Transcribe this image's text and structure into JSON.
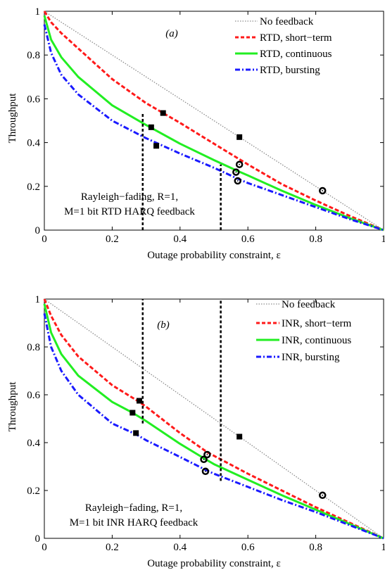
{
  "colors": {
    "no_feedback": "#8c8c8c",
    "short_term": "#ff1a1a",
    "continuous": "#22ee22",
    "bursting": "#1a1aff",
    "axis": "#000000"
  },
  "chart_data": [
    {
      "type": "line",
      "panel_label": "(a)",
      "xlabel": "Outage probability constraint, ε",
      "ylabel": "Throughput",
      "xlim": [
        0,
        1
      ],
      "ylim": [
        0,
        1
      ],
      "x_ticks": [
        "0",
        "0.2",
        "0.4",
        "0.6",
        "0.8",
        "1"
      ],
      "y_ticks": [
        "0",
        "0.2",
        "0.4",
        "0.6",
        "0.8",
        "1"
      ],
      "grid": false,
      "legend_position": "top-right",
      "annotation": [
        "Rayleigh−fading, R=1,",
        "M=1 bit RTD HARQ feedback"
      ],
      "series": [
        {
          "name": "No feedback",
          "style": "dotted",
          "color": "#8c8c8c",
          "x": [
            0,
            0.1,
            0.2,
            0.3,
            0.4,
            0.5,
            0.6,
            0.7,
            0.8,
            0.9,
            1
          ],
          "y": [
            1,
            0.9,
            0.8,
            0.7,
            0.6,
            0.5,
            0.4,
            0.3,
            0.2,
            0.1,
            0
          ]
        },
        {
          "name": "RTD, short−term",
          "style": "dashed",
          "color": "#ff1a1a",
          "x": [
            0,
            0.02,
            0.05,
            0.1,
            0.2,
            0.3,
            0.35,
            0.4,
            0.5,
            0.6,
            0.7,
            0.8,
            0.9,
            1
          ],
          "y": [
            1,
            0.95,
            0.9,
            0.83,
            0.69,
            0.58,
            0.535,
            0.49,
            0.395,
            0.3,
            0.21,
            0.135,
            0.065,
            0
          ]
        },
        {
          "name": "RTD, continuous",
          "style": "solid",
          "color": "#22ee22",
          "x": [
            0,
            0.02,
            0.05,
            0.1,
            0.2,
            0.3,
            0.4,
            0.5,
            0.57,
            0.6,
            0.7,
            0.8,
            0.9,
            1
          ],
          "y": [
            0.98,
            0.87,
            0.79,
            0.7,
            0.57,
            0.48,
            0.395,
            0.32,
            0.27,
            0.25,
            0.18,
            0.115,
            0.055,
            0
          ]
        },
        {
          "name": "RTD, bursting",
          "style": "dashdot",
          "color": "#1a1aff",
          "x": [
            0,
            0.02,
            0.05,
            0.1,
            0.2,
            0.3,
            0.4,
            0.5,
            0.57,
            0.6,
            0.7,
            0.8,
            0.9,
            1
          ],
          "y": [
            0.94,
            0.81,
            0.71,
            0.62,
            0.5,
            0.42,
            0.35,
            0.285,
            0.235,
            0.215,
            0.16,
            0.105,
            0.05,
            0
          ]
        }
      ],
      "square_markers": {
        "x": [
          0.35,
          0.315,
          0.33,
          0.575
        ],
        "y": [
          0.535,
          0.47,
          0.385,
          0.425
        ]
      },
      "circle_markers": {
        "x": [
          0.575,
          0.565,
          0.57,
          0.82
        ],
        "y": [
          0.3,
          0.265,
          0.225,
          0.18
        ]
      },
      "vertical_guides": {
        "x": [
          0.29,
          0.52
        ],
        "y_bottom": [
          0,
          0
        ],
        "y_top": [
          0.54,
          0.3
        ]
      }
    },
    {
      "type": "line",
      "panel_label": "(b)",
      "xlabel": "Outage probability constraint, ε",
      "ylabel": "Throughput",
      "xlim": [
        0,
        1
      ],
      "ylim": [
        0,
        1
      ],
      "x_ticks": [
        "0",
        "0.2",
        "0.4",
        "0.6",
        "0.8",
        "1"
      ],
      "y_ticks": [
        "0",
        "0.2",
        "0.4",
        "0.6",
        "0.8",
        "1"
      ],
      "grid": false,
      "legend_position": "top-right",
      "annotation": [
        "Rayleigh−fading, R=1,",
        "M=1 bit INR HARQ feedback"
      ],
      "series": [
        {
          "name": "No feedback",
          "style": "dotted",
          "color": "#8c8c8c",
          "x": [
            0,
            0.1,
            0.2,
            0.3,
            0.4,
            0.5,
            0.6,
            0.7,
            0.8,
            0.9,
            1
          ],
          "y": [
            1,
            0.9,
            0.8,
            0.7,
            0.6,
            0.5,
            0.4,
            0.3,
            0.2,
            0.1,
            0
          ]
        },
        {
          "name": "INR, short−term",
          "style": "dashed",
          "color": "#ff1a1a",
          "x": [
            0,
            0.02,
            0.05,
            0.1,
            0.2,
            0.28,
            0.3,
            0.4,
            0.48,
            0.5,
            0.6,
            0.7,
            0.8,
            0.9,
            1
          ],
          "y": [
            1,
            0.93,
            0.85,
            0.76,
            0.64,
            0.57,
            0.55,
            0.44,
            0.36,
            0.345,
            0.27,
            0.2,
            0.13,
            0.065,
            0
          ]
        },
        {
          "name": "INR, continuous",
          "style": "solid",
          "color": "#22ee22",
          "x": [
            0,
            0.02,
            0.05,
            0.1,
            0.2,
            0.26,
            0.3,
            0.4,
            0.47,
            0.5,
            0.6,
            0.7,
            0.8,
            0.9,
            1
          ],
          "y": [
            0.98,
            0.86,
            0.77,
            0.68,
            0.57,
            0.525,
            0.49,
            0.395,
            0.335,
            0.31,
            0.245,
            0.18,
            0.12,
            0.06,
            0
          ]
        },
        {
          "name": "INR, bursting",
          "style": "dashdot",
          "color": "#1a1aff",
          "x": [
            0,
            0.02,
            0.05,
            0.1,
            0.2,
            0.27,
            0.3,
            0.4,
            0.47,
            0.5,
            0.6,
            0.7,
            0.8,
            0.9,
            1
          ],
          "y": [
            0.94,
            0.8,
            0.7,
            0.6,
            0.48,
            0.435,
            0.41,
            0.34,
            0.29,
            0.27,
            0.215,
            0.16,
            0.11,
            0.055,
            0
          ]
        }
      ],
      "square_markers": {
        "x": [
          0.28,
          0.26,
          0.27,
          0.575
        ],
        "y": [
          0.575,
          0.525,
          0.44,
          0.425
        ]
      },
      "circle_markers": {
        "x": [
          0.48,
          0.47,
          0.475,
          0.82
        ],
        "y": [
          0.35,
          0.33,
          0.28,
          0.18
        ]
      },
      "vertical_guides": {
        "x": [
          0.29,
          0.52
        ],
        "y_bottom": [
          0.48,
          0.24
        ],
        "y_top": [
          1,
          1
        ]
      }
    }
  ]
}
